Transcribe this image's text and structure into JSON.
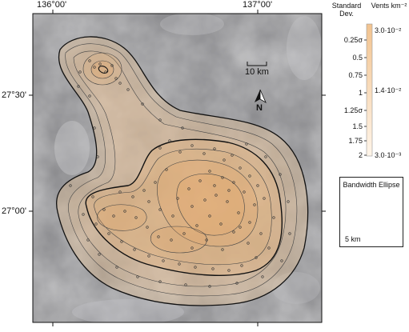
{
  "map": {
    "lon_labels": [
      "136°00'",
      "137°00'"
    ],
    "lat_labels": [
      "27°30'",
      "27°00'"
    ],
    "scale_bar_label": "10 km",
    "north_label": "N"
  },
  "legend": {
    "std_dev_title": "Standard\nDev.",
    "density_title": "Vents km⁻²",
    "std_dev_levels": [
      "0.25σ",
      "0.5",
      "0.75",
      "1",
      "1.25σ",
      "1.5",
      "1.75",
      "2"
    ],
    "density_levels": [
      "3.0·10⁻²",
      "1.4·10⁻²",
      "3.0·10⁻³"
    ],
    "ramp_colors": [
      "#f2c38f",
      "#fff5e9"
    ]
  },
  "bandwidth_ellipse": {
    "title": "Bandwidth Ellipse",
    "scale_label": "5 km"
  }
}
